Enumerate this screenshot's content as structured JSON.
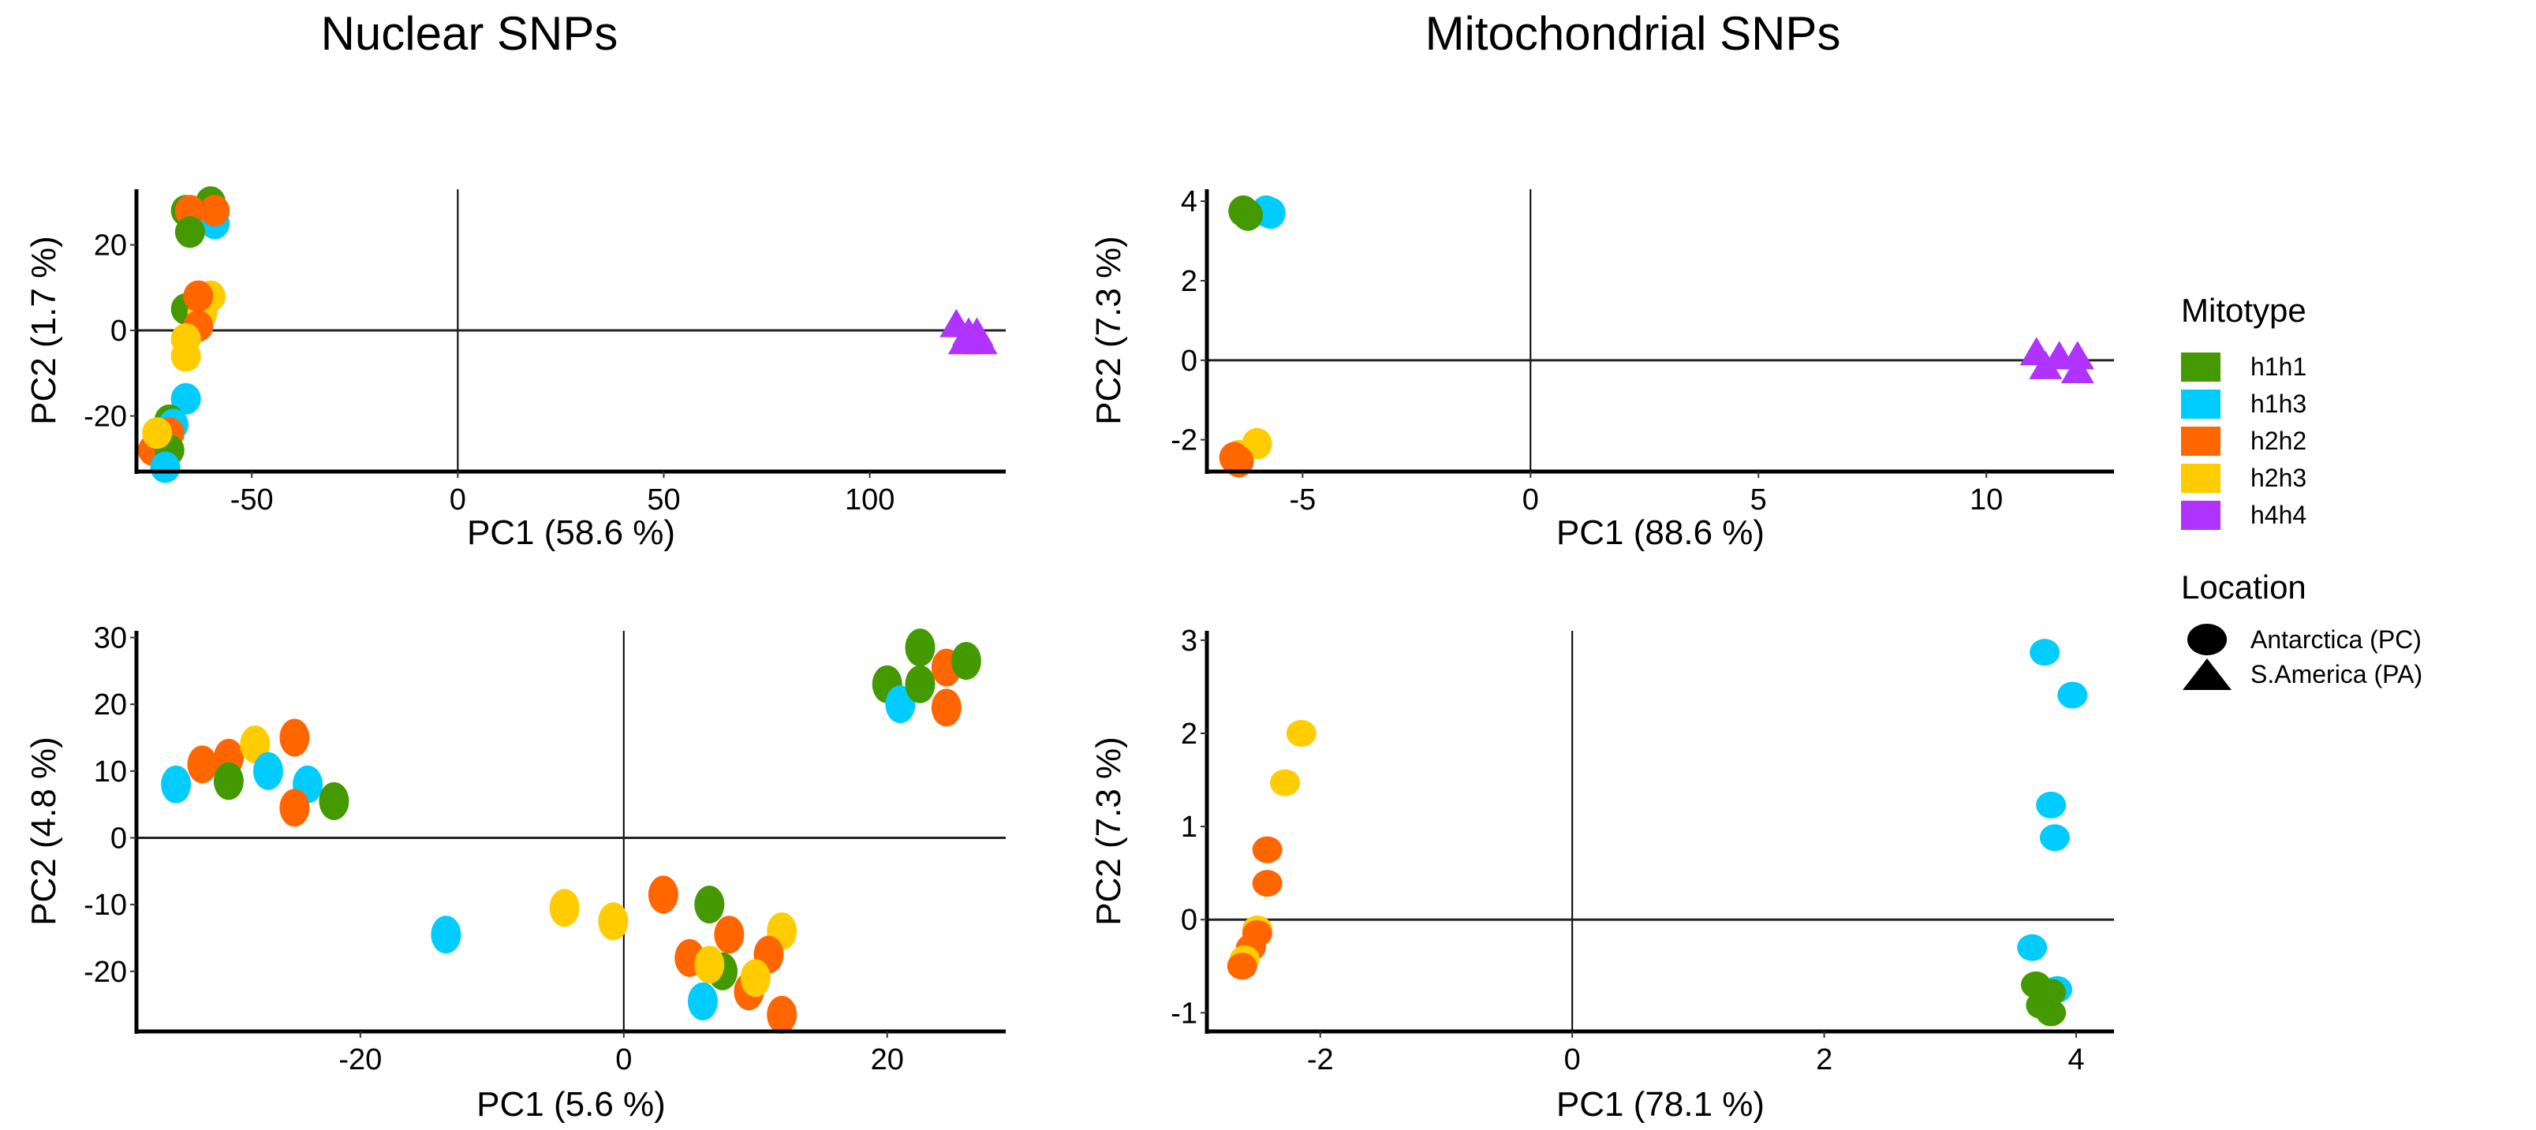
{
  "figure": {
    "column_titles": [
      "Nuclear SNPs",
      "Mitochondrial SNPs"
    ]
  },
  "legend": {
    "mitotype_title": "Mitotype",
    "mitotypes": [
      {
        "label": "h1h1",
        "color": "#449900"
      },
      {
        "label": "h1h3",
        "color": "#00CCFF"
      },
      {
        "label": "h2h2",
        "color": "#FF6600"
      },
      {
        "label": "h2h3",
        "color": "#FFCC00"
      },
      {
        "label": "h4h4",
        "color": "#B033FF"
      }
    ],
    "location_title": "Location",
    "locations": [
      {
        "label": "Antarctica (PC)",
        "shape": "circle"
      },
      {
        "label": "S.America (PA)",
        "shape": "triangle"
      }
    ]
  },
  "chart_data": [
    {
      "type": "scatter",
      "panel": "top-left",
      "column": "Nuclear SNPs",
      "xlabel": "PC1 (58.6 %)",
      "ylabel": "PC2 (1.7 %)",
      "xlim": [
        -78,
        133
      ],
      "ylim": [
        -33,
        33
      ],
      "xticks": [
        -50,
        0,
        50,
        100
      ],
      "yticks": [
        -20,
        0,
        20
      ],
      "reference_lines": {
        "x": 0,
        "y": 0
      },
      "grid": false,
      "points": [
        {
          "x": -60,
          "y": 30,
          "group": "h1h1",
          "shape": "circle"
        },
        {
          "x": -59,
          "y": 25,
          "group": "h1h3",
          "shape": "circle"
        },
        {
          "x": -66,
          "y": 28,
          "group": "h1h1",
          "shape": "circle"
        },
        {
          "x": -65,
          "y": 28,
          "group": "h2h2",
          "shape": "circle"
        },
        {
          "x": -59,
          "y": 28,
          "group": "h2h2",
          "shape": "circle"
        },
        {
          "x": -65,
          "y": 23,
          "group": "h1h1",
          "shape": "circle"
        },
        {
          "x": -60,
          "y": 8,
          "group": "h2h3",
          "shape": "circle"
        },
        {
          "x": -66,
          "y": 5,
          "group": "h1h1",
          "shape": "circle"
        },
        {
          "x": -62,
          "y": 4,
          "group": "h2h3",
          "shape": "circle"
        },
        {
          "x": -63,
          "y": 1,
          "group": "h2h2",
          "shape": "circle"
        },
        {
          "x": -63,
          "y": 8,
          "group": "h2h2",
          "shape": "circle"
        },
        {
          "x": -66,
          "y": -2,
          "group": "h2h3",
          "shape": "circle"
        },
        {
          "x": -66,
          "y": -6,
          "group": "h2h3",
          "shape": "circle"
        },
        {
          "x": -66,
          "y": -16,
          "group": "h1h3",
          "shape": "circle"
        },
        {
          "x": -70,
          "y": -21,
          "group": "h1h1",
          "shape": "circle"
        },
        {
          "x": -69,
          "y": -22,
          "group": "h1h3",
          "shape": "circle"
        },
        {
          "x": -70,
          "y": -24,
          "group": "h2h2",
          "shape": "circle"
        },
        {
          "x": -74,
          "y": -28,
          "group": "h2h2",
          "shape": "circle"
        },
        {
          "x": -70,
          "y": -28,
          "group": "h1h1",
          "shape": "circle"
        },
        {
          "x": -73,
          "y": -24,
          "group": "h2h3",
          "shape": "circle"
        },
        {
          "x": -71,
          "y": -32,
          "group": "h1h3",
          "shape": "circle"
        },
        {
          "x": 121,
          "y": 1,
          "group": "h4h4",
          "shape": "triangle"
        },
        {
          "x": 124,
          "y": -1,
          "group": "h4h4",
          "shape": "triangle"
        },
        {
          "x": 126,
          "y": -1,
          "group": "h4h4",
          "shape": "triangle"
        },
        {
          "x": 127,
          "y": -3,
          "group": "h4h4",
          "shape": "triangle"
        },
        {
          "x": 123,
          "y": -3,
          "group": "h4h4",
          "shape": "triangle"
        }
      ]
    },
    {
      "type": "scatter",
      "panel": "top-right",
      "column": "Mitochondrial SNPs",
      "xlabel": "PC1 (88.6 %)",
      "ylabel": "PC2 (7.3 %)",
      "xlim": [
        -7.1,
        12.8
      ],
      "ylim": [
        -2.8,
        4.3
      ],
      "xticks": [
        -5,
        0,
        5,
        10
      ],
      "yticks": [
        -2,
        0,
        2,
        4
      ],
      "reference_lines": {
        "x": 0,
        "y": 0
      },
      "grid": false,
      "points": [
        {
          "x": -5.8,
          "y": 3.75,
          "group": "h1h3",
          "shape": "circle"
        },
        {
          "x": -5.7,
          "y": 3.7,
          "group": "h1h3",
          "shape": "circle"
        },
        {
          "x": -6.3,
          "y": 3.75,
          "group": "h1h1",
          "shape": "circle"
        },
        {
          "x": -6.2,
          "y": 3.65,
          "group": "h1h1",
          "shape": "circle"
        },
        {
          "x": -6.0,
          "y": -2.1,
          "group": "h2h3",
          "shape": "circle"
        },
        {
          "x": -6.4,
          "y": -2.4,
          "group": "h2h3",
          "shape": "circle"
        },
        {
          "x": -6.5,
          "y": -2.45,
          "group": "h2h2",
          "shape": "circle"
        },
        {
          "x": -6.4,
          "y": -2.55,
          "group": "h2h2",
          "shape": "circle"
        },
        {
          "x": 11.1,
          "y": 0.15,
          "group": "h4h4",
          "shape": "triangle"
        },
        {
          "x": 11.6,
          "y": 0.05,
          "group": "h4h4",
          "shape": "triangle"
        },
        {
          "x": 12.0,
          "y": 0.05,
          "group": "h4h4",
          "shape": "triangle"
        },
        {
          "x": 11.3,
          "y": -0.2,
          "group": "h4h4",
          "shape": "triangle"
        },
        {
          "x": 12.0,
          "y": -0.3,
          "group": "h4h4",
          "shape": "triangle"
        }
      ]
    },
    {
      "type": "scatter",
      "panel": "bottom-left",
      "column": "Nuclear SNPs",
      "xlabel": "PC1 (5.6 %)",
      "ylabel": "PC2 (4.8 %)",
      "xlim": [
        -37,
        29
      ],
      "ylim": [
        -29,
        31
      ],
      "xticks": [
        -20,
        0,
        20
      ],
      "yticks": [
        -20,
        -10,
        0,
        10,
        20,
        30
      ],
      "reference_lines": {
        "x": 0,
        "y": 0
      },
      "grid": false,
      "points": [
        {
          "x": -34,
          "y": 8,
          "group": "h1h3",
          "shape": "circle"
        },
        {
          "x": -32,
          "y": 11,
          "group": "h2h2",
          "shape": "circle"
        },
        {
          "x": -30,
          "y": 12,
          "group": "h2h2",
          "shape": "circle"
        },
        {
          "x": -30,
          "y": 8.5,
          "group": "h1h1",
          "shape": "circle"
        },
        {
          "x": -28,
          "y": 14,
          "group": "h2h3",
          "shape": "circle"
        },
        {
          "x": -27,
          "y": 10,
          "group": "h1h3",
          "shape": "circle"
        },
        {
          "x": -25,
          "y": 15,
          "group": "h2h2",
          "shape": "circle"
        },
        {
          "x": -24,
          "y": 8,
          "group": "h1h3",
          "shape": "circle"
        },
        {
          "x": -25,
          "y": 4.5,
          "group": "h2h2",
          "shape": "circle"
        },
        {
          "x": -22,
          "y": 5.5,
          "group": "h1h1",
          "shape": "circle"
        },
        {
          "x": 20,
          "y": 23,
          "group": "h1h1",
          "shape": "circle"
        },
        {
          "x": 21,
          "y": 20,
          "group": "h1h3",
          "shape": "circle"
        },
        {
          "x": 22.5,
          "y": 28.5,
          "group": "h1h1",
          "shape": "circle"
        },
        {
          "x": 22.5,
          "y": 23,
          "group": "h1h1",
          "shape": "circle"
        },
        {
          "x": 24.5,
          "y": 25.5,
          "group": "h2h2",
          "shape": "circle"
        },
        {
          "x": 26,
          "y": 26.5,
          "group": "h1h1",
          "shape": "circle"
        },
        {
          "x": 24.5,
          "y": 19.5,
          "group": "h2h2",
          "shape": "circle"
        },
        {
          "x": -13.5,
          "y": -14.5,
          "group": "h1h3",
          "shape": "circle"
        },
        {
          "x": -4.5,
          "y": -10.5,
          "group": "h2h3",
          "shape": "circle"
        },
        {
          "x": -0.8,
          "y": -12.5,
          "group": "h2h3",
          "shape": "circle"
        },
        {
          "x": 3,
          "y": -8.5,
          "group": "h2h2",
          "shape": "circle"
        },
        {
          "x": 6.5,
          "y": -10,
          "group": "h1h1",
          "shape": "circle"
        },
        {
          "x": 8,
          "y": -14.5,
          "group": "h2h2",
          "shape": "circle"
        },
        {
          "x": 12,
          "y": -14,
          "group": "h2h3",
          "shape": "circle"
        },
        {
          "x": 5,
          "y": -18,
          "group": "h2h2",
          "shape": "circle"
        },
        {
          "x": 7.5,
          "y": -20,
          "group": "h1h1",
          "shape": "circle"
        },
        {
          "x": 6.5,
          "y": -19,
          "group": "h2h3",
          "shape": "circle"
        },
        {
          "x": 11,
          "y": -17.5,
          "group": "h2h2",
          "shape": "circle"
        },
        {
          "x": 9.5,
          "y": -23,
          "group": "h2h2",
          "shape": "circle"
        },
        {
          "x": 10,
          "y": -21,
          "group": "h2h3",
          "shape": "circle"
        },
        {
          "x": 6,
          "y": -24.5,
          "group": "h1h3",
          "shape": "circle"
        },
        {
          "x": 12,
          "y": -26.5,
          "group": "h2h2",
          "shape": "circle"
        }
      ]
    },
    {
      "type": "scatter",
      "panel": "bottom-right",
      "column": "Mitochondrial SNPs",
      "xlabel": "PC1 (78.1 %)",
      "ylabel": "PC2 (7.3 %)",
      "xlim": [
        -2.9,
        4.3
      ],
      "ylim": [
        -1.2,
        3.1
      ],
      "xticks": [
        -2,
        0,
        2,
        4
      ],
      "yticks": [
        -1,
        0,
        1,
        2,
        3
      ],
      "reference_lines": {
        "x": 0,
        "y": 0
      },
      "grid": false,
      "points": [
        {
          "x": -2.15,
          "y": 2.0,
          "group": "h2h3",
          "shape": "circle"
        },
        {
          "x": -2.28,
          "y": 1.47,
          "group": "h2h3",
          "shape": "circle"
        },
        {
          "x": -2.42,
          "y": 0.75,
          "group": "h2h2",
          "shape": "circle"
        },
        {
          "x": -2.42,
          "y": 0.39,
          "group": "h2h2",
          "shape": "circle"
        },
        {
          "x": -2.5,
          "y": -0.1,
          "group": "h2h3",
          "shape": "circle"
        },
        {
          "x": -2.5,
          "y": -0.15,
          "group": "h2h2",
          "shape": "circle"
        },
        {
          "x": -2.55,
          "y": -0.3,
          "group": "h2h2",
          "shape": "circle"
        },
        {
          "x": -2.6,
          "y": -0.42,
          "group": "h2h3",
          "shape": "circle"
        },
        {
          "x": -2.62,
          "y": -0.5,
          "group": "h2h2",
          "shape": "circle"
        },
        {
          "x": 3.75,
          "y": 2.87,
          "group": "h1h3",
          "shape": "circle"
        },
        {
          "x": 3.97,
          "y": 2.41,
          "group": "h1h3",
          "shape": "circle"
        },
        {
          "x": 3.8,
          "y": 1.23,
          "group": "h1h3",
          "shape": "circle"
        },
        {
          "x": 3.83,
          "y": 0.88,
          "group": "h1h3",
          "shape": "circle"
        },
        {
          "x": 3.65,
          "y": -0.3,
          "group": "h1h3",
          "shape": "circle"
        },
        {
          "x": 3.85,
          "y": -0.75,
          "group": "h1h3",
          "shape": "circle"
        },
        {
          "x": 3.68,
          "y": -0.7,
          "group": "h1h1",
          "shape": "circle"
        },
        {
          "x": 3.8,
          "y": -0.78,
          "group": "h1h1",
          "shape": "circle"
        },
        {
          "x": 3.72,
          "y": -0.92,
          "group": "h1h1",
          "shape": "circle"
        },
        {
          "x": 3.8,
          "y": -1.0,
          "group": "h1h1",
          "shape": "circle"
        }
      ]
    }
  ]
}
